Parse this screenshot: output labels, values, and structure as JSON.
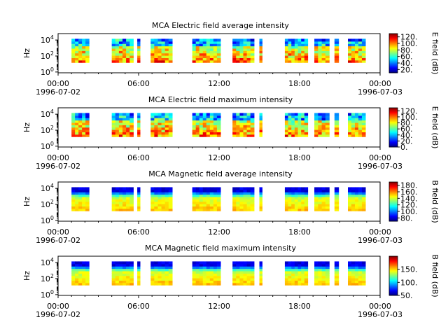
{
  "chart_data": [
    {
      "type": "heatmap",
      "title": "MCA  Electric field average intensity",
      "ylabel": "Hz",
      "colorbar_label": "E field (dB)",
      "colorbar_ticks": [
        "20.",
        "40.",
        "60.",
        "80.",
        "100.",
        "120."
      ],
      "clim": [
        10,
        130
      ],
      "kind": "E",
      "y_ticks": [
        {
          "base": "10",
          "exp": "0"
        },
        {
          "base": "10",
          "exp": "2"
        },
        {
          "base": "10",
          "exp": "4"
        }
      ]
    },
    {
      "type": "heatmap",
      "title": "MCA  Electric field maximum intensity",
      "ylabel": "Hz",
      "colorbar_label": "E field (dB)",
      "colorbar_ticks": [
        "0.",
        "20.",
        "40.",
        "60.",
        "80.",
        "100.",
        "120."
      ],
      "clim": [
        0,
        130
      ],
      "kind": "E",
      "y_ticks": [
        {
          "base": "10",
          "exp": "0"
        },
        {
          "base": "10",
          "exp": "2"
        },
        {
          "base": "10",
          "exp": "4"
        }
      ]
    },
    {
      "type": "heatmap",
      "title": "MCA  Magnetic field average intensity",
      "ylabel": "Hz",
      "colorbar_label": "B field (dB)",
      "colorbar_ticks": [
        "80.",
        "100.",
        "120.",
        "140.",
        "160.",
        "180."
      ],
      "clim": [
        70,
        190
      ],
      "kind": "B",
      "y_ticks": [
        {
          "base": "10",
          "exp": "0"
        },
        {
          "base": "10",
          "exp": "2"
        },
        {
          "base": "10",
          "exp": "4"
        }
      ]
    },
    {
      "type": "heatmap",
      "title": "MCA  Magnetic field maximum intensity",
      "ylabel": "Hz",
      "colorbar_label": "B field (dB)",
      "colorbar_ticks": [
        "50.",
        "100.",
        "150."
      ],
      "clim": [
        50,
        200
      ],
      "kind": "B",
      "y_ticks": [
        {
          "base": "10",
          "exp": "0"
        },
        {
          "base": "10",
          "exp": "2"
        },
        {
          "base": "10",
          "exp": "4"
        }
      ]
    }
  ],
  "shared": {
    "x_range_hours": [
      0,
      24
    ],
    "x_tick_labels": [
      "00:00",
      "06:00",
      "12:00",
      "18:00",
      "00:00"
    ],
    "x_date_labels": [
      "1996-07-02",
      "1996-07-03"
    ],
    "data_segments_hours": [
      [
        1.0,
        2.3
      ],
      [
        4.0,
        5.6
      ],
      [
        5.9,
        6.1
      ],
      [
        6.9,
        8.5
      ],
      [
        10.0,
        12.1
      ],
      [
        13.0,
        14.6
      ],
      [
        15.0,
        15.2
      ],
      [
        16.9,
        18.6
      ],
      [
        19.1,
        20.2
      ],
      [
        20.6,
        20.9
      ],
      [
        21.6,
        22.9
      ]
    ]
  }
}
